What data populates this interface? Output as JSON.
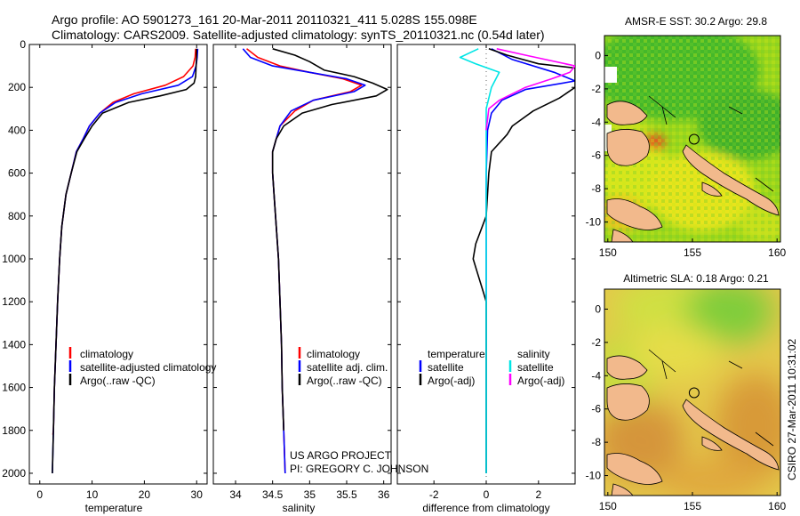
{
  "header": {
    "line1": "Argo profile: AO 5901273_161 20-Mar-2011 20110321_411 5.028S 155.098E",
    "line2": "Climatology: CARS2009. Satellite-adjusted climatology: synTS_20110321.nc (0.54d later)"
  },
  "colors": {
    "climatology": "#ff0000",
    "satellite": "#0000ff",
    "argo": "#000000",
    "satellite_salinity": "#00e5e5",
    "argo_adj_salinity": "#ff00ff",
    "land": "#f2b98c"
  },
  "depth_axis": {
    "ticks": [
      "0",
      "200",
      "400",
      "600",
      "800",
      "1000",
      "1200",
      "1400",
      "1600",
      "1800",
      "2000"
    ]
  },
  "chart_data": [
    {
      "type": "line",
      "name": "temperature-profile",
      "xlabel": "temperature",
      "xlim": [
        -2,
        32
      ],
      "ylim": [
        2050,
        0
      ],
      "xticks": [
        "0",
        "10",
        "20",
        "30"
      ],
      "legend": [
        "climatology",
        "satellite-adjusted climatology",
        "Argo(..raw -QC)"
      ],
      "legend_position": "lower-center",
      "series": [
        {
          "name": "climatology",
          "color": "#ff0000",
          "points": [
            [
              29.8,
              20
            ],
            [
              29.7,
              60
            ],
            [
              29.3,
              100
            ],
            [
              27.5,
              150
            ],
            [
              24,
              190
            ],
            [
              18,
              230
            ],
            [
              14,
              270
            ],
            [
              11.5,
              320
            ],
            [
              9.5,
              380
            ],
            [
              8.3,
              440
            ],
            [
              7,
              500
            ],
            [
              6,
              600
            ],
            [
              5,
              700
            ],
            [
              4.2,
              850
            ],
            [
              3.8,
              1000
            ],
            [
              3.4,
              1200
            ],
            [
              3.1,
              1400
            ],
            [
              2.8,
              1600
            ],
            [
              2.6,
              1800
            ],
            [
              2.5,
              1820
            ]
          ]
        },
        {
          "name": "satellite-adjusted climatology",
          "color": "#0000ff",
          "points": [
            [
              30.2,
              20
            ],
            [
              30.1,
              60
            ],
            [
              29.9,
              100
            ],
            [
              29.2,
              150
            ],
            [
              26.5,
              190
            ],
            [
              19.5,
              230
            ],
            [
              14.5,
              270
            ],
            [
              11.5,
              320
            ],
            [
              9.5,
              380
            ],
            [
              8.3,
              440
            ],
            [
              7,
              500
            ],
            [
              6,
              600
            ],
            [
              5,
              700
            ],
            [
              4.2,
              850
            ],
            [
              3.8,
              1000
            ],
            [
              3.4,
              1200
            ],
            [
              3.1,
              1400
            ],
            [
              2.8,
              1600
            ],
            [
              2.6,
              1800
            ],
            [
              2.5,
              1900
            ],
            [
              2.4,
              2000
            ]
          ]
        },
        {
          "name": "Argo(..raw -QC)",
          "color": "#000000",
          "points": [
            [
              30,
              20
            ],
            [
              30,
              60
            ],
            [
              29.9,
              100
            ],
            [
              29.8,
              150
            ],
            [
              29.5,
              180
            ],
            [
              28,
              210
            ],
            [
              23,
              240
            ],
            [
              17,
              270
            ],
            [
              12,
              320
            ],
            [
              10,
              380
            ],
            [
              8.5,
              440
            ],
            [
              7.1,
              500
            ],
            [
              6,
              600
            ],
            [
              5,
              700
            ],
            [
              4.2,
              850
            ],
            [
              3.8,
              1000
            ],
            [
              3.4,
              1200
            ],
            [
              3.1,
              1400
            ],
            [
              2.8,
              1600
            ],
            [
              2.6,
              1800
            ],
            [
              2.5,
              1900
            ],
            [
              2.4,
              2000
            ]
          ]
        }
      ]
    },
    {
      "type": "line",
      "name": "salinity-profile",
      "xlabel": "salinity",
      "xlim": [
        33.7,
        36.1
      ],
      "ylim": [
        2050,
        0
      ],
      "xticks": [
        "34",
        "34.5",
        "35",
        "35.5",
        "36"
      ],
      "legend": [
        "climatology",
        "satellite adj. clim.",
        "Argo(..raw -QC)"
      ],
      "legend_position": "lower-right",
      "series": [
        {
          "name": "climatology",
          "color": "#ff0000",
          "points": [
            [
              34.15,
              20
            ],
            [
              34.3,
              60
            ],
            [
              34.6,
              100
            ],
            [
              35,
              130
            ],
            [
              35.45,
              160
            ],
            [
              35.7,
              190
            ],
            [
              35.55,
              220
            ],
            [
              35.05,
              260
            ],
            [
              34.8,
              310
            ],
            [
              34.6,
              380
            ],
            [
              34.55,
              440
            ],
            [
              34.5,
              500
            ],
            [
              34.5,
              600
            ],
            [
              34.52,
              700
            ],
            [
              34.55,
              850
            ],
            [
              34.58,
              1000
            ],
            [
              34.6,
              1200
            ],
            [
              34.62,
              1400
            ],
            [
              34.63,
              1600
            ],
            [
              34.65,
              1800
            ],
            [
              34.66,
              1900
            ],
            [
              34.67,
              2000
            ]
          ]
        },
        {
          "name": "satellite adj. clim.",
          "color": "#0000ff",
          "points": [
            [
              34.1,
              20
            ],
            [
              34.2,
              60
            ],
            [
              34.5,
              100
            ],
            [
              35,
              130
            ],
            [
              35.5,
              160
            ],
            [
              35.75,
              190
            ],
            [
              35.6,
              220
            ],
            [
              35.05,
              260
            ],
            [
              34.75,
              310
            ],
            [
              34.6,
              380
            ],
            [
              34.55,
              440
            ],
            [
              34.5,
              500
            ],
            [
              34.5,
              600
            ],
            [
              34.52,
              700
            ],
            [
              34.55,
              850
            ],
            [
              34.58,
              1000
            ],
            [
              34.6,
              1200
            ],
            [
              34.62,
              1400
            ],
            [
              34.63,
              1600
            ],
            [
              34.65,
              1800
            ],
            [
              34.66,
              1900
            ],
            [
              34.67,
              2000
            ]
          ]
        },
        {
          "name": "Argo(..raw -QC)",
          "color": "#000000",
          "points": [
            [
              34.5,
              20
            ],
            [
              34.8,
              50
            ],
            [
              35,
              80
            ],
            [
              35.2,
              120
            ],
            [
              35.6,
              150
            ],
            [
              35.85,
              180
            ],
            [
              36.05,
              210
            ],
            [
              35.9,
              240
            ],
            [
              35.3,
              280
            ],
            [
              34.9,
              320
            ],
            [
              34.65,
              380
            ],
            [
              34.55,
              440
            ],
            [
              34.5,
              500
            ],
            [
              34.5,
              600
            ],
            [
              34.52,
              700
            ],
            [
              34.55,
              850
            ],
            [
              34.58,
              1000
            ],
            [
              34.6,
              1200
            ],
            [
              34.62,
              1400
            ],
            [
              34.63,
              1600
            ],
            [
              34.65,
              1800
            ]
          ]
        }
      ]
    },
    {
      "type": "line",
      "name": "difference-profile",
      "xlabel": "difference from climatology",
      "xlim": [
        -3.4,
        3.4
      ],
      "ylim": [
        2050,
        0
      ],
      "xticks": [
        "-2",
        "0",
        "2"
      ],
      "legend": [
        "temperature",
        "satellite",
        "Argo(-adj)",
        "salinity",
        "satellite",
        "Argo(-adj)"
      ],
      "legend_position": "lower-center",
      "series": [
        {
          "name": "temperature satellite",
          "color": "#0000ff",
          "points": [
            [
              0.2,
              20
            ],
            [
              1,
              70
            ],
            [
              2.6,
              130
            ],
            [
              3.4,
              170
            ],
            [
              1.5,
              210
            ],
            [
              0.6,
              260
            ],
            [
              0.2,
              320
            ],
            [
              0.05,
              400
            ],
            [
              0,
              600
            ],
            [
              0,
              800
            ],
            [
              0,
              1000
            ],
            [
              0,
              1200
            ],
            [
              0,
              1600
            ],
            [
              0,
              2000
            ]
          ]
        },
        {
          "name": "temperature Argo(-adj)",
          "color": "#000000",
          "points": [
            [
              0.1,
              20
            ],
            [
              0.8,
              50
            ],
            [
              2,
              90
            ],
            [
              3.4,
              110
            ],
            [
              3.4,
              200
            ],
            [
              2.8,
              250
            ],
            [
              1.8,
              310
            ],
            [
              1,
              380
            ],
            [
              0.8,
              420
            ],
            [
              0.2,
              500
            ],
            [
              0.1,
              600
            ],
            [
              0,
              800
            ],
            [
              -0.4,
              930
            ],
            [
              -0.5,
              1000
            ],
            [
              -0.3,
              1080
            ],
            [
              -0.1,
              1160
            ],
            [
              0,
              1200
            ],
            [
              0,
              2000
            ]
          ]
        },
        {
          "name": "salinity satellite",
          "color": "#00e5e5",
          "points": [
            [
              -0.3,
              20
            ],
            [
              -1,
              60
            ],
            [
              -0.4,
              90
            ],
            [
              0.5,
              130
            ],
            [
              0.2,
              200
            ],
            [
              0,
              300
            ],
            [
              0,
              500
            ],
            [
              0,
              800
            ],
            [
              0,
              1000
            ],
            [
              0,
              1200
            ],
            [
              0,
              1600
            ],
            [
              0,
              2000
            ]
          ]
        },
        {
          "name": "salinity Argo(-adj)",
          "color": "#ff00ff",
          "points": [
            [
              0.4,
              20
            ],
            [
              1.5,
              50
            ],
            [
              3.4,
              100
            ],
            [
              3.2,
              130
            ],
            [
              2.5,
              160
            ],
            [
              1.5,
              200
            ],
            [
              0.5,
              260
            ],
            [
              0.1,
              300
            ],
            [
              0,
              400
            ]
          ]
        }
      ]
    },
    {
      "type": "heatmap",
      "name": "sst-map",
      "title": "AMSR-E SST: 30.2 Argo: 29.8",
      "xlim": [
        149.8,
        160.2
      ],
      "ylim": [
        -11.2,
        1.2
      ],
      "xticks": [
        "150",
        "155",
        "160"
      ],
      "yticks": [
        "0",
        "-2",
        "-4",
        "-6",
        "-8",
        "-10"
      ],
      "argo_position": [
        155.098,
        -5.028
      ]
    },
    {
      "type": "heatmap",
      "name": "sla-map",
      "title": "Altimetric SLA: 0.18 Argo: 0.21",
      "xlim": [
        149.8,
        160.2
      ],
      "ylim": [
        -11.2,
        1.2
      ],
      "xticks": [
        "150",
        "155",
        "160"
      ],
      "yticks": [
        "0",
        "-2",
        "-4",
        "-6",
        "-8",
        "-10"
      ],
      "argo_position": [
        155.098,
        -5.028
      ]
    }
  ],
  "temperature_legend": {
    "items": [
      "climatology",
      "satellite-adjusted climatology",
      "Argo(..raw -QC)"
    ]
  },
  "salinity_legend": {
    "items": [
      "climatology",
      "satellite adj. clim.",
      "Argo(..raw -QC)"
    ]
  },
  "diff_legend": {
    "temperature_header": "temperature",
    "salinity_header": "salinity",
    "temperature_items": [
      "satellite",
      "Argo(-adj)"
    ],
    "salinity_items": [
      "satellite",
      "Argo(-adj)"
    ]
  },
  "project_text": {
    "line1": "US ARGO PROJECT",
    "line2": "PI: GREGORY C. JOHNSON"
  },
  "stamp": "CSIRO 27-Mar-2011 10:31:02"
}
